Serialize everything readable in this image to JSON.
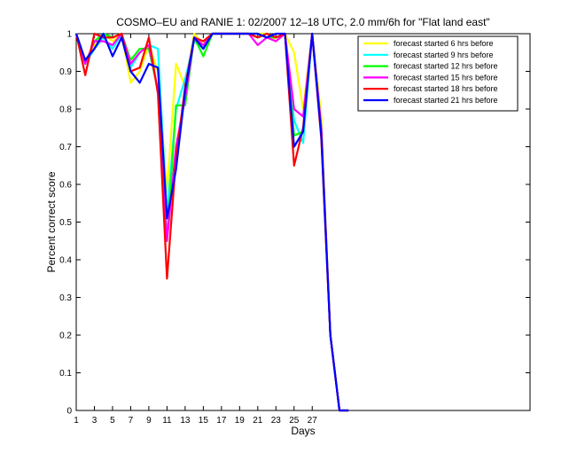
{
  "chart_data": {
    "type": "line",
    "title": "COSMO–EU and RANIE 1: 02/2007 12–18 UTC, 2.0 mm/6h for \"Flat land east\"",
    "xlabel": "Days",
    "ylabel": "Percent correct score",
    "xlim": [
      1,
      51
    ],
    "ylim": [
      0,
      1
    ],
    "xticks": [
      1,
      3,
      5,
      7,
      9,
      11,
      13,
      15,
      17,
      19,
      21,
      23,
      25,
      27
    ],
    "yticks": [
      0,
      0.1,
      0.2,
      0.3,
      0.4,
      0.5,
      0.6,
      0.7,
      0.8,
      0.9,
      1
    ],
    "ytick_labels": [
      "0",
      "0.1",
      "0.2",
      "0.3",
      "0.4",
      "0.5",
      "0.6",
      "0.7",
      "0.8",
      "0.9",
      "1"
    ],
    "grid": false,
    "legend_position": "top-right",
    "x": [
      1,
      2,
      3,
      4,
      5,
      6,
      7,
      8,
      9,
      10,
      11,
      12,
      13,
      14,
      15,
      16,
      17,
      18,
      19,
      20,
      21,
      22,
      23,
      24,
      25,
      26,
      27,
      28,
      29,
      30,
      31
    ],
    "series": [
      {
        "name": "forecast started 6 hrs before",
        "color": "#ffff00",
        "values": [
          1,
          0.93,
          0.97,
          1,
          0.98,
          1,
          0.87,
          0.9,
          0.97,
          0.9,
          0.58,
          0.92,
          0.86,
          1,
          0.97,
          1,
          1,
          1,
          1,
          1,
          1,
          1,
          0.98,
          1,
          0.95,
          0.8,
          1,
          0.78,
          0.2,
          0,
          0
        ]
      },
      {
        "name": "forecast started 9 hrs before",
        "color": "#00ffff",
        "values": [
          1,
          0.92,
          0.96,
          0.99,
          0.96,
          1,
          0.91,
          0.95,
          0.97,
          0.96,
          0.52,
          0.8,
          0.88,
          0.98,
          0.96,
          1,
          1,
          1,
          1,
          1,
          0.99,
          1,
          0.99,
          1,
          0.77,
          0.71,
          1,
          0.75,
          0.2,
          0,
          0
        ]
      },
      {
        "name": "forecast started 12 hrs before",
        "color": "#00ff00",
        "values": [
          1,
          0.92,
          0.98,
          1,
          0.99,
          1,
          0.93,
          0.96,
          0.96,
          0.85,
          0.45,
          0.81,
          0.81,
          0.99,
          0.94,
          1,
          1,
          1,
          1,
          1,
          1,
          0.99,
          0.99,
          1,
          0.73,
          0.74,
          1,
          0.75,
          0.2,
          0,
          0
        ]
      },
      {
        "name": "forecast started 15 hrs before",
        "color": "#ff00ff",
        "values": [
          1,
          0.92,
          0.98,
          0.98,
          0.97,
          1,
          0.92,
          0.95,
          0.97,
          0.85,
          0.45,
          0.7,
          0.83,
          0.99,
          0.97,
          1,
          1,
          1,
          1,
          1,
          0.97,
          0.99,
          0.98,
          1,
          0.8,
          0.78,
          1,
          0.75,
          0.2,
          0,
          0
        ]
      },
      {
        "name": "forecast started 18 hrs before",
        "color": "#ff0000",
        "values": [
          1,
          0.89,
          1,
          0.99,
          0.99,
          1,
          0.9,
          0.91,
          0.99,
          0.84,
          0.35,
          0.67,
          0.86,
          0.99,
          0.98,
          1,
          1,
          1,
          1,
          1,
          0.99,
          1,
          0.99,
          1,
          0.65,
          0.75,
          1,
          0.72,
          0.2,
          0,
          0
        ]
      },
      {
        "name": "forecast started 21 hrs before",
        "color": "#0000ff",
        "values": [
          1,
          0.93,
          0.96,
          1,
          0.94,
          0.99,
          0.9,
          0.87,
          0.92,
          0.91,
          0.51,
          0.64,
          0.85,
          0.99,
          0.96,
          1,
          1,
          1,
          1,
          1,
          1,
          0.99,
          1,
          1,
          0.7,
          0.74,
          1,
          0.73,
          0.2,
          0,
          0
        ]
      }
    ]
  }
}
